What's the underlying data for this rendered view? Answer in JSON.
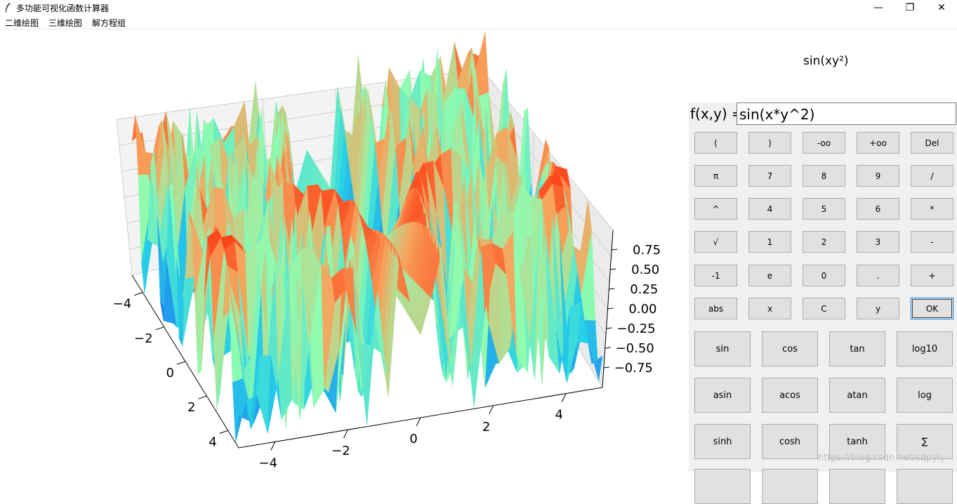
{
  "window": {
    "title": "多功能可视化函数计算器",
    "minimize": "—",
    "maximize": "❐",
    "close": "✕"
  },
  "menu": [
    "二维绘图",
    "三维绘图",
    "解方程组"
  ],
  "plot": {
    "title_text": "sin(xy²)",
    "surface_colormap": "rainbow",
    "colors": {
      "high": "#ff3a12",
      "mid": "#f7a35c",
      "low_mid": "#8ffcb0",
      "low": "#1ec8e8",
      "pane": "#f2f2f2",
      "grid": "#cfcfcf"
    }
  },
  "chart_data": {
    "type": "surface",
    "function": "sin(x*y^2)",
    "x_ticks": [
      "−4",
      "−2",
      "0",
      "2",
      "4"
    ],
    "y_ticks": [
      "−4",
      "−2",
      "0",
      "2",
      "4"
    ],
    "z_ticks": [
      "0.75",
      "0.50",
      "0.25",
      "0.00",
      "−0.25",
      "−0.50",
      "−0.75"
    ],
    "xlim": [
      -5,
      5
    ],
    "ylim": [
      -5,
      5
    ],
    "zlim": [
      -1,
      1
    ],
    "grid": true
  },
  "calculator": {
    "label": "f(x,y) =",
    "input_value": "sin(x*y^2)",
    "rows": [
      [
        "(",
        ")",
        "-oo",
        "+oo",
        "Del"
      ],
      [
        "π",
        "7",
        "8",
        "9",
        "/"
      ],
      [
        "^",
        "4",
        "5",
        "6",
        "*"
      ],
      [
        "√",
        "1",
        "2",
        "3",
        "-"
      ],
      [
        "-1",
        "e",
        "0",
        ".",
        "+"
      ],
      [
        "abs",
        "x",
        "C",
        "y",
        "OK"
      ]
    ],
    "func_rows": [
      [
        "sin",
        "cos",
        "tan",
        "log10"
      ],
      [
        "asin",
        "acos",
        "atan",
        "log"
      ],
      [
        "sinh",
        "cosh",
        "tanh",
        "∑"
      ]
    ]
  },
  "watermark": "https://blog.csdn.net/sdpyly"
}
